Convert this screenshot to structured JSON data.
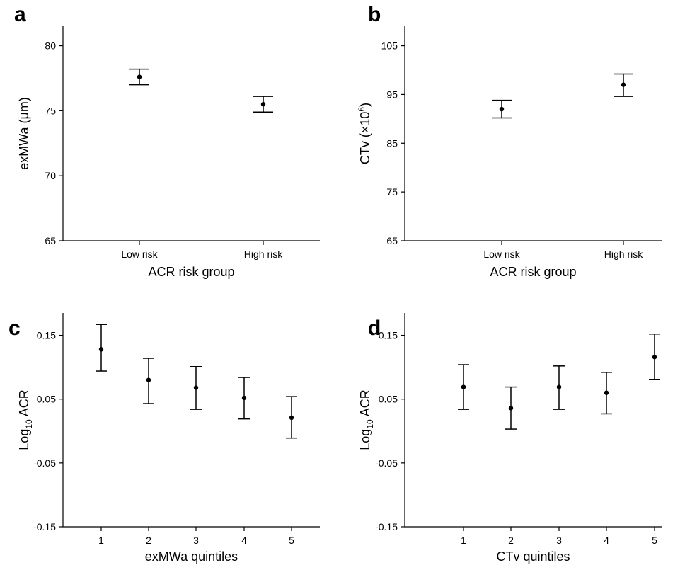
{
  "chart_data": [
    {
      "panel": "a",
      "type": "scatter",
      "subtype": "point-with-error-bars",
      "xlabel": "ACR risk group",
      "ylabel": "exMWa (μm)",
      "ylim": [
        65,
        81.5
      ],
      "yticks": [
        65,
        70,
        75,
        80
      ],
      "ytick_labels": [
        "65",
        "70",
        "75",
        "80"
      ],
      "categories": [
        "Low risk",
        "High risk"
      ],
      "values": [
        77.6,
        75.5
      ],
      "lower": [
        77.0,
        74.9
      ],
      "upper": [
        78.2,
        76.1
      ]
    },
    {
      "panel": "b",
      "type": "scatter",
      "subtype": "point-with-error-bars",
      "xlabel": "ACR risk group",
      "ylabel_main": "CTv (×10",
      "ylabel_sup": "6",
      "ylabel_end": ")",
      "ylim": [
        65,
        109
      ],
      "yticks": [
        65,
        75,
        85,
        95,
        105
      ],
      "ytick_labels": [
        "65",
        "75",
        "85",
        "95",
        "105"
      ],
      "categories": [
        "Low risk",
        "High risk"
      ],
      "values": [
        92.0,
        97.0
      ],
      "lower": [
        90.2,
        94.6
      ],
      "upper": [
        93.8,
        99.2
      ]
    },
    {
      "panel": "c",
      "type": "scatter",
      "subtype": "point-with-error-bars",
      "xlabel": "exMWa quintiles",
      "ylabel_main": "Log",
      "ylabel_sub": "10",
      "ylabel_end": " ACR",
      "ylim": [
        -0.15,
        0.185
      ],
      "yticks": [
        -0.15,
        -0.05,
        0.05,
        0.15
      ],
      "ytick_labels": [
        "-0.15",
        "-0.05",
        "0.05",
        "0.15"
      ],
      "categories": [
        "1",
        "2",
        "3",
        "4",
        "5"
      ],
      "values": [
        0.128,
        0.08,
        0.068,
        0.052,
        0.021
      ],
      "lower": [
        0.094,
        0.043,
        0.034,
        0.019,
        -0.011
      ],
      "upper": [
        0.167,
        0.114,
        0.101,
        0.084,
        0.054
      ]
    },
    {
      "panel": "d",
      "type": "scatter",
      "subtype": "point-with-error-bars",
      "xlabel": "CTv quintiles",
      "ylabel_main": "Log",
      "ylabel_sub": "10",
      "ylabel_end": " ACR",
      "ylim": [
        -0.15,
        0.185
      ],
      "yticks": [
        -0.15,
        -0.05,
        0.05,
        0.15
      ],
      "ytick_labels": [
        "-0.15",
        "-0.05",
        "0.05",
        "0.15"
      ],
      "categories": [
        "1",
        "2",
        "3",
        "4",
        "5"
      ],
      "values": [
        0.069,
        0.036,
        0.069,
        0.06,
        0.116
      ],
      "lower": [
        0.034,
        0.003,
        0.034,
        0.027,
        0.081
      ],
      "upper": [
        0.104,
        0.069,
        0.102,
        0.092,
        0.152
      ]
    }
  ]
}
